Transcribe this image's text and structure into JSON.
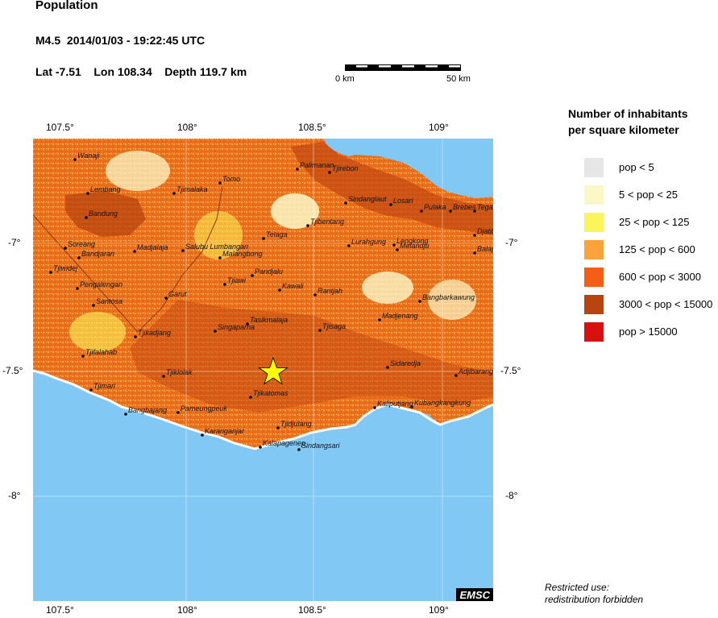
{
  "title": "Population",
  "event": {
    "headline": "M4.5  2014/01/03 - 19:22:45 UTC",
    "location": "Lat -7.51    Lon 108.34    Depth 119.7 km"
  },
  "scale": {
    "start_label": "0 km",
    "end_label": "50 km"
  },
  "axes": {
    "lon_ticks": [
      "107.5°",
      "108°",
      "108.5°",
      "109°"
    ],
    "lat_ticks": [
      "-7°",
      "-7.5°",
      "-8°"
    ]
  },
  "legend": {
    "title_line1": "Number of inhabitants",
    "title_line2": "per square kilometer",
    "items": [
      {
        "label": "pop < 5",
        "color": "#e6e6e6"
      },
      {
        "label": "5 < pop < 25",
        "color": "#fbf8c8"
      },
      {
        "label": "25 < pop < 125",
        "color": "#fbf55a"
      },
      {
        "label": "125 < pop < 600",
        "color": "#fba33a"
      },
      {
        "label": "600 < pop < 3000",
        "color": "#f45e16"
      },
      {
        "label": "3000 < pop < 15000",
        "color": "#b84410"
      },
      {
        "label": "pop > 15000",
        "color": "#d81010"
      }
    ]
  },
  "colors": {
    "sea": "#82c8f5",
    "land": "#e8711e",
    "epicenter": "#ffff00"
  },
  "epicenter_icon": "star-icon",
  "cities": [
    {
      "name": "Wanaji"
    },
    {
      "name": "Lembang"
    },
    {
      "name": "Bandung"
    },
    {
      "name": "Soreang"
    },
    {
      "name": "Bandjaran"
    },
    {
      "name": "Madjalaja"
    },
    {
      "name": "Tjiwidej"
    },
    {
      "name": "Pengalengan"
    },
    {
      "name": "Santosa"
    },
    {
      "name": "Tjimalaka"
    },
    {
      "name": "Tomo"
    },
    {
      "name": "Palimanan"
    },
    {
      "name": "Tjirebon"
    },
    {
      "name": "Sindanglaut"
    },
    {
      "name": "Losari"
    },
    {
      "name": "Pulaka"
    },
    {
      "name": "Brebes"
    },
    {
      "name": "Tegal"
    },
    {
      "name": "Tjibentang"
    },
    {
      "name": "Djatibarang"
    },
    {
      "name": "Telaga"
    },
    {
      "name": "Lurahgung"
    },
    {
      "name": "Lengkong"
    },
    {
      "name": "Melandju"
    },
    {
      "name": "Balapulang"
    },
    {
      "name": "Salubu Lumbangan"
    },
    {
      "name": "Malangbong"
    },
    {
      "name": "Pandjalu"
    },
    {
      "name": "Tjiawi"
    },
    {
      "name": "Kawali"
    },
    {
      "name": "Rantjah"
    },
    {
      "name": "Bangbarkawung"
    },
    {
      "name": "Garut"
    },
    {
      "name": "Tasikmalaja"
    },
    {
      "name": "Singaparna"
    },
    {
      "name": "Tjikadjang"
    },
    {
      "name": "Tjisaga"
    },
    {
      "name": "Madjenang"
    },
    {
      "name": "Tjifalahab"
    },
    {
      "name": "Sidaredja"
    },
    {
      "name": "Adjibarang"
    },
    {
      "name": "Tjiklolak"
    },
    {
      "name": "Tjimari"
    },
    {
      "name": "Tjikatomas"
    },
    {
      "name": "Kaliputjang"
    },
    {
      "name": "Kubangkangkung"
    },
    {
      "name": "Bangbajang"
    },
    {
      "name": "Pameungpeuk"
    },
    {
      "name": "Tjidjulang"
    },
    {
      "name": "Karanganjar"
    },
    {
      "name": "Kalapagenep"
    },
    {
      "name": "Sindangsari"
    }
  ],
  "watermark": "EMSC",
  "footnote": {
    "line1": "Restricted use:",
    "line2": "redistribution forbidden"
  }
}
